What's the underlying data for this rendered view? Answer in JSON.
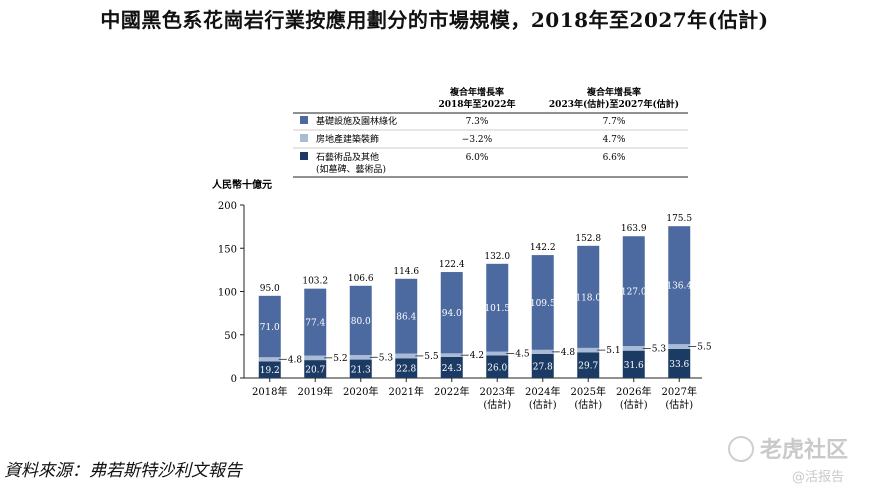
{
  "title": "中國黑色系花崗岩行業按應用劃分的市場規模，2018年至2027年(估計)",
  "source": "資料來源：弗若斯特沙利文報告",
  "watermark": {
    "main": "老虎社区",
    "sub": "@活报告"
  },
  "cagr_table": {
    "headers": [
      [
        "複合年增長率",
        "2018年至2022年"
      ],
      [
        "複合年增長率",
        "2023年(估計)至2027年(估計)"
      ]
    ],
    "rows": [
      {
        "label": [
          "基礎設施及園林綠化"
        ],
        "color": "#4C6A9F",
        "v1": "7.3%",
        "v2": "7.7%"
      },
      {
        "label": [
          "房地產建築裝飾"
        ],
        "color": "#A9BBD6",
        "v1": "−3.2%",
        "v2": "4.7%"
      },
      {
        "label": [
          "石藝術品及其他",
          "(如墓碑、藝術品)"
        ],
        "color": "#1C3B64",
        "v1": "6.0%",
        "v2": "6.6%"
      }
    ]
  },
  "chart_data": {
    "type": "bar",
    "stacked": true,
    "ylabel": "人民幣十億元",
    "ylim": [
      0,
      200
    ],
    "yticks": [
      0,
      50,
      100,
      150,
      200
    ],
    "categories": [
      [
        "2018年"
      ],
      [
        "2019年"
      ],
      [
        "2020年"
      ],
      [
        "2021年"
      ],
      [
        "2022年"
      ],
      [
        "2023年",
        "(估計)"
      ],
      [
        "2024年",
        "(估計)"
      ],
      [
        "2025年",
        "(估計)"
      ],
      [
        "2026年",
        "(估計)"
      ],
      [
        "2027年",
        "(估計)"
      ]
    ],
    "series": [
      {
        "name": "石藝術品及其他",
        "color": "#1C3B64",
        "values": [
          19.2,
          20.7,
          21.3,
          22.8,
          24.3,
          26.0,
          27.8,
          29.7,
          31.6,
          33.6
        ]
      },
      {
        "name": "房地產建築裝飾",
        "color": "#A9BBD6",
        "values": [
          4.8,
          5.2,
          5.3,
          5.5,
          4.2,
          4.5,
          4.8,
          5.1,
          5.3,
          5.5
        ]
      },
      {
        "name": "基礎設施及園林綠化",
        "color": "#4C6A9F",
        "values": [
          71.0,
          77.4,
          80.0,
          86.4,
          94.0,
          101.5,
          109.5,
          118.0,
          127.0,
          136.4
        ]
      }
    ],
    "totals": [
      95.0,
      103.2,
      106.6,
      114.6,
      122.4,
      132.0,
      142.2,
      152.8,
      163.9,
      175.5
    ]
  }
}
